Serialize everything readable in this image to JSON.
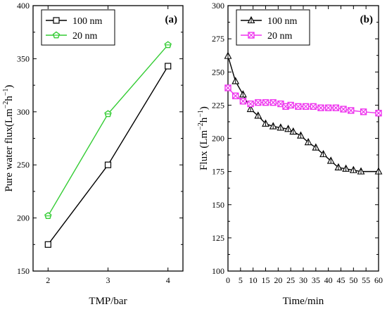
{
  "chart_data": [
    {
      "type": "line",
      "panel_label": "(a)",
      "xlabel": "TMP/bar",
      "ylabel_main": "Pure water flux(Lm",
      "ylabel_sup1": "−2",
      "ylabel_mid": "h",
      "ylabel_sup2": "−1",
      "ylabel_end": ")",
      "xlim": [
        1.75,
        4.25
      ],
      "ylim": [
        150,
        400
      ],
      "xticks": [
        2,
        3,
        4
      ],
      "xtick_labels": [
        "2",
        "3",
        "4"
      ],
      "yticks": [
        150,
        200,
        250,
        300,
        350,
        400
      ],
      "ytick_labels": [
        "150",
        "200",
        "250",
        "300",
        "350",
        "400"
      ],
      "legend_position": "top-left",
      "series": [
        {
          "name": "100 nm",
          "color": "#000000",
          "marker": "square",
          "x": [
            2,
            3,
            4
          ],
          "y": [
            175,
            250,
            343
          ]
        },
        {
          "name": "20 nm",
          "color": "#33cc33",
          "marker": "pentagon",
          "x": [
            2,
            3,
            4
          ],
          "y": [
            202,
            298,
            363
          ]
        }
      ]
    },
    {
      "type": "line",
      "panel_label": "(b)",
      "xlabel": "Time/min",
      "ylabel_main": "Flux (Lm",
      "ylabel_sup1": "−2",
      "ylabel_mid": "h",
      "ylabel_sup2": "−1",
      "ylabel_end": ")",
      "xlim": [
        0,
        60
      ],
      "ylim": [
        100,
        300
      ],
      "xticks": [
        0,
        5,
        10,
        15,
        20,
        25,
        30,
        35,
        40,
        45,
        50,
        55,
        60
      ],
      "xtick_labels": [
        "0",
        "5",
        "10",
        "15",
        "20",
        "25",
        "30",
        "35",
        "40",
        "45",
        "50",
        "55",
        "60"
      ],
      "yticks": [
        100,
        125,
        150,
        175,
        200,
        225,
        250,
        275,
        300
      ],
      "ytick_labels": [
        "100",
        "125",
        "150",
        "175",
        "200",
        "225",
        "250",
        "275",
        "300"
      ],
      "legend_position": "top-left",
      "series": [
        {
          "name": "100 nm",
          "color": "#000000",
          "marker": "triangle",
          "x": [
            0,
            3,
            6,
            9,
            12,
            15,
            18,
            21,
            24,
            26,
            29,
            32,
            35,
            38,
            41,
            44,
            47,
            50,
            53,
            60
          ],
          "y": [
            262,
            243,
            233,
            222,
            217,
            211,
            209,
            208,
            207,
            205,
            202,
            197,
            193,
            188,
            183,
            178,
            177,
            176,
            175,
            175
          ]
        },
        {
          "name": "20 nm",
          "color": "#ee33ee",
          "marker": "crossed-square",
          "x": [
            0,
            3,
            6,
            9,
            12,
            15,
            18,
            21,
            23,
            25,
            28,
            31,
            34,
            37,
            40,
            43,
            46,
            49,
            54,
            60
          ],
          "y": [
            238,
            232,
            228,
            226,
            227,
            227,
            227,
            226,
            224,
            225,
            224,
            224,
            224,
            223,
            223,
            223,
            222,
            221,
            220,
            219
          ]
        }
      ]
    }
  ]
}
